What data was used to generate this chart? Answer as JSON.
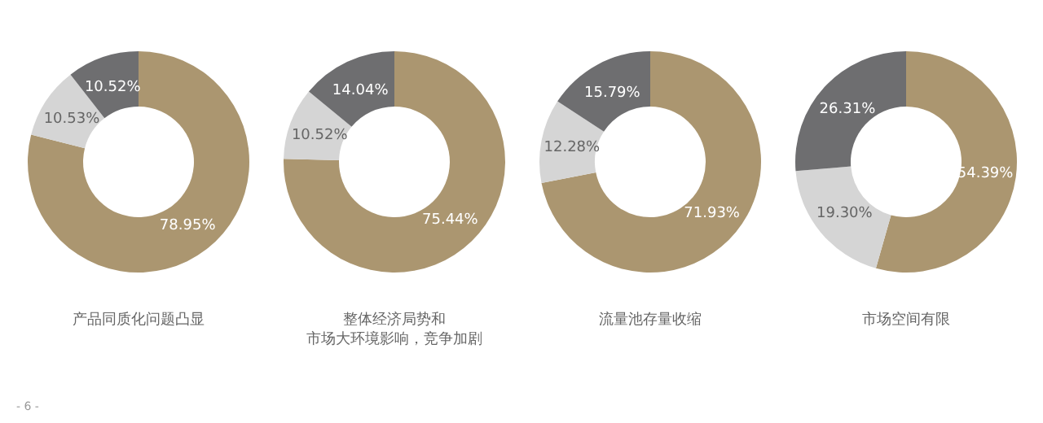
{
  "chart_data": [
    {
      "type": "donut",
      "title": "产品同质化问题凸显",
      "categories": [
        null,
        null,
        null
      ],
      "values": [
        78.95,
        10.53,
        10.52
      ],
      "colors": [
        "#ab9670",
        "#d5d5d5",
        "#6e6e70"
      ],
      "value_labels": [
        "78.95%",
        "10.53%",
        "10.52%"
      ],
      "legend": false,
      "annotations": [
        "- 6 -"
      ]
    },
    {
      "type": "donut",
      "title": "整体经济局势和",
      "subtitle": "市场大环境影响，竞争加剧",
      "categories": [
        null,
        null,
        null
      ],
      "values": [
        75.44,
        10.52,
        14.04
      ],
      "colors": [
        "#ab9670",
        "#d5d5d5",
        "#6e6e70"
      ],
      "value_labels": [
        "75.44%",
        "10.52%",
        "14.04%"
      ],
      "legend": false
    },
    {
      "type": "donut",
      "title": "流量池存量收缩",
      "categories": [
        null,
        null,
        null
      ],
      "values": [
        71.93,
        12.28,
        15.79
      ],
      "colors": [
        "#ab9670",
        "#d5d5d5",
        "#6e6e70"
      ],
      "value_labels": [
        "71.93%",
        "12.28%",
        "15.79%"
      ],
      "legend": false
    },
    {
      "type": "donut",
      "title": "市场空间有限",
      "categories": [
        null,
        null,
        null
      ],
      "values": [
        54.39,
        19.3,
        26.31
      ],
      "colors": [
        "#ab9670",
        "#d5d5d5",
        "#6e6e70"
      ],
      "value_labels": [
        "54.39%",
        "19.30%",
        "26.31%"
      ],
      "legend": false
    }
  ]
}
